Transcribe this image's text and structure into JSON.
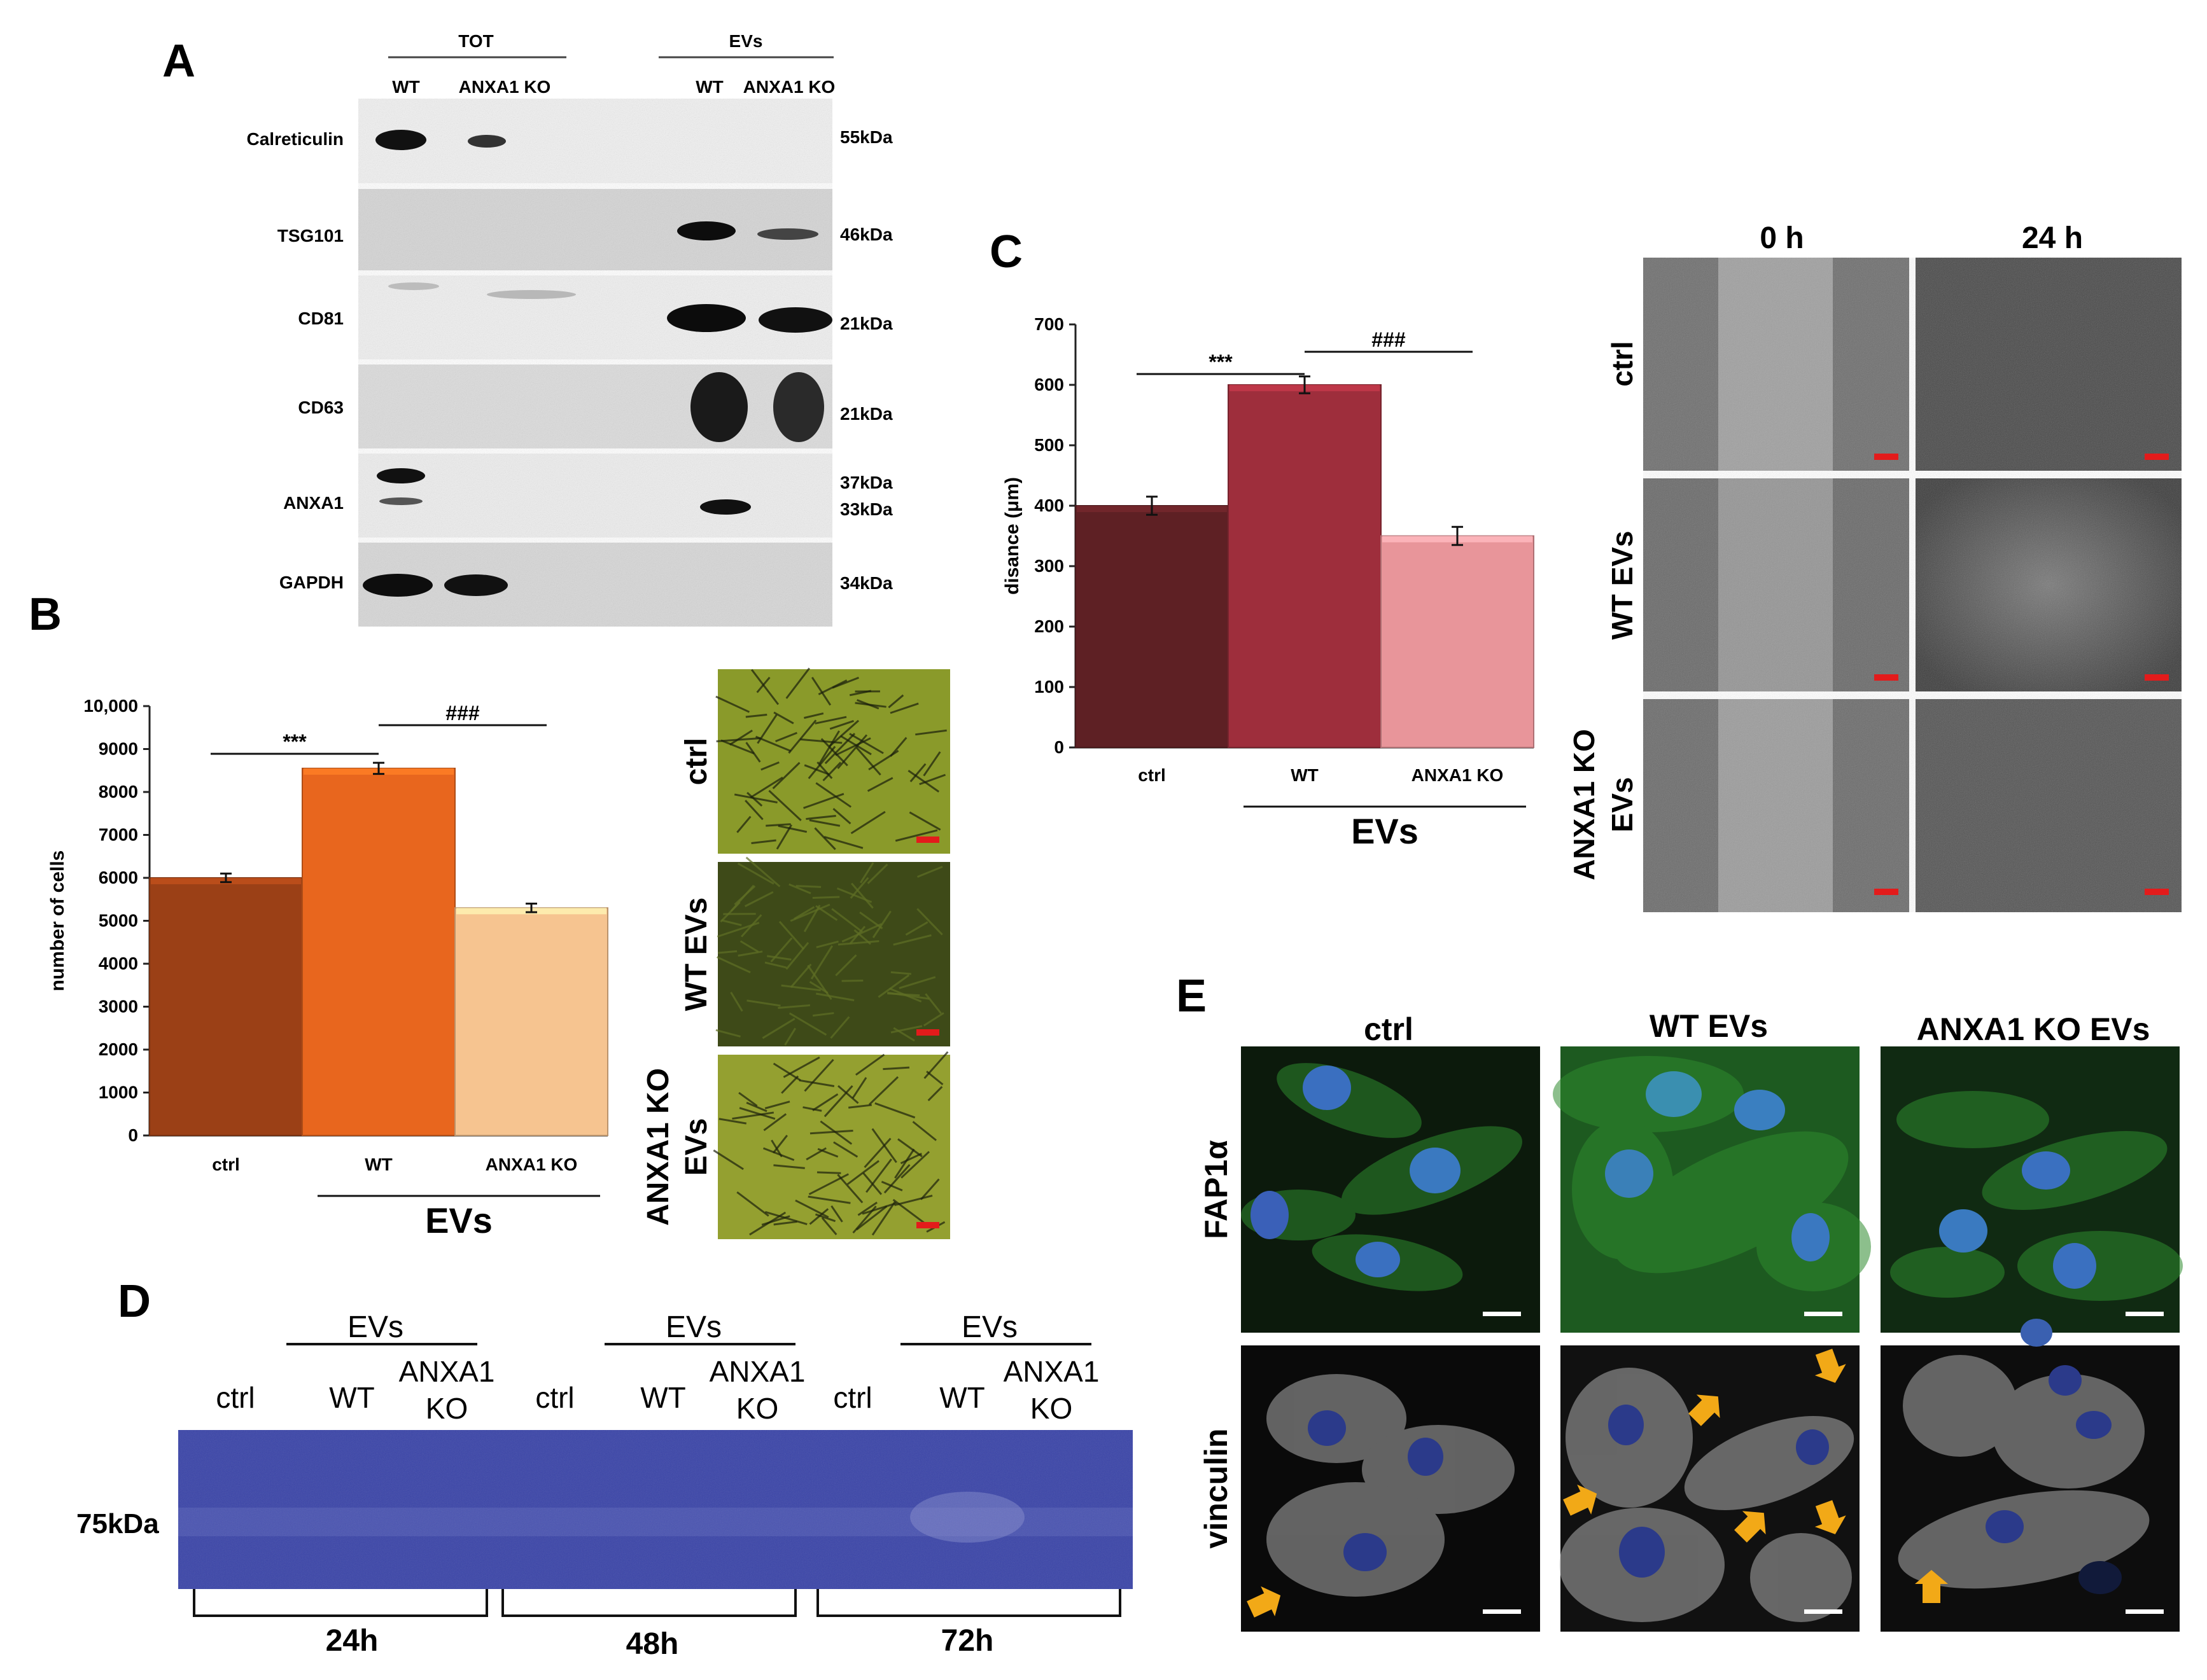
{
  "panel_letters": {
    "A": "A",
    "B": "B",
    "C": "C",
    "D": "D",
    "E": "E"
  },
  "panel_a": {
    "group_tot": "TOT",
    "group_evs": "EVs",
    "lanes": [
      "WT",
      "ANXA1 KO",
      "WT",
      "ANXA1 KO"
    ],
    "rows": [
      {
        "label": "Calreticulin",
        "sizes": [
          "55kDa"
        ]
      },
      {
        "label": "TSG101",
        "sizes": [
          "46kDa"
        ]
      },
      {
        "label": "CD81",
        "sizes": [
          "21kDa"
        ]
      },
      {
        "label": "CD63",
        "sizes": [
          "21kDa"
        ]
      },
      {
        "label": "ANXA1",
        "sizes": [
          "37kDa",
          "33kDa"
        ]
      },
      {
        "label": "GAPDH",
        "sizes": [
          "34kDa"
        ]
      }
    ]
  },
  "panel_b_images": {
    "labels": [
      "ctrl",
      "WT EVs",
      "ANXA1 KO",
      "EVs"
    ]
  },
  "panel_c_images": {
    "columns": [
      "0 h",
      "24 h"
    ],
    "rows": [
      "ctrl",
      "WT EVs",
      "ANXA1 KO",
      "EVs"
    ]
  },
  "panel_d": {
    "ev_label": "EVs",
    "lane_labels": [
      "ctrl",
      "WT",
      "ANXA1",
      "KO"
    ],
    "marker": "75kDa",
    "timepoints": [
      "24h",
      "48h",
      "72h"
    ]
  },
  "panel_e": {
    "columns": [
      "ctrl",
      "WT EVs",
      "ANXA1 KO EVs"
    ],
    "rows": [
      "FAP1α",
      "vinculin"
    ]
  },
  "chart_data": [
    {
      "panel": "B",
      "type": "bar",
      "categories": [
        "ctrl",
        "WT",
        "ANXA1 KO"
      ],
      "values": [
        6000,
        8550,
        5300
      ],
      "errors": [
        100,
        130,
        100
      ],
      "colors": [
        "#9b4016",
        "#e8661e",
        "#f6c490"
      ],
      "ylabel": "number of cells",
      "xlabel": "EVs",
      "ylim": [
        0,
        10000
      ],
      "yticks": [
        0,
        1000,
        2000,
        3000,
        4000,
        5000,
        6000,
        7000,
        8000,
        9000,
        10000
      ],
      "ytick_labels": [
        "0",
        "1000",
        "2000",
        "3000",
        "4000",
        "5000",
        "6000",
        "7000",
        "8000",
        "9000",
        "10,000"
      ],
      "annotations": [
        "***",
        "###"
      ]
    },
    {
      "panel": "C",
      "type": "bar",
      "categories": [
        "ctrl",
        "WT",
        "ANXA1 KO"
      ],
      "values": [
        400,
        600,
        350
      ],
      "errors": [
        15,
        14,
        15
      ],
      "colors": [
        "#5e2024",
        "#9e2e3c",
        "#e8959a"
      ],
      "ylabel": "disance (μm)",
      "xlabel": "EVs",
      "ylim": [
        0,
        700
      ],
      "yticks": [
        0,
        100,
        200,
        300,
        400,
        500,
        600,
        700
      ],
      "ytick_labels": [
        "0",
        "100",
        "200",
        "300",
        "400",
        "500",
        "600",
        "700"
      ],
      "annotations": [
        "***",
        "###"
      ]
    }
  ]
}
